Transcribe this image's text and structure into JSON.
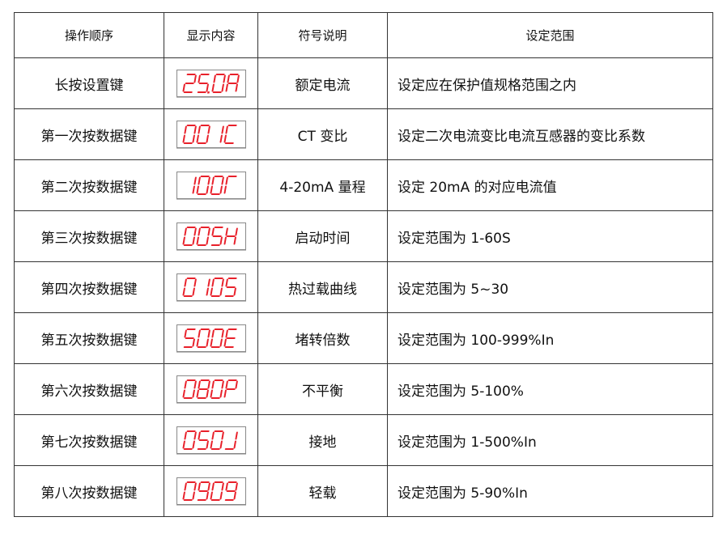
{
  "headers": [
    "操作顺序",
    "显示内容",
    "符号说明",
    "设定范围"
  ],
  "segment_color": "#e8202a",
  "rows": [
    {
      "op": "长按设置键",
      "display": "25.0A",
      "symbol": "额定电流",
      "range": "设定应在保护值规格范围之内"
    },
    {
      "op": "第一次按数据键",
      "display": "001C",
      "symbol": "CT 变比",
      "range": "设定二次电流变比电流互感器的变比系数"
    },
    {
      "op": "第二次按数据键",
      "display": "100Γ",
      "symbol": "4-20mA 量程",
      "range": "设定 20mA 的对应电流值"
    },
    {
      "op": "第三次按数据键",
      "display": "005H",
      "symbol": "启动时间",
      "range": "设定范围为 1-60S"
    },
    {
      "op": "第四次按数据键",
      "display": "0105",
      "symbol": "热过载曲线",
      "range": "设定范围为 5~30"
    },
    {
      "op": "第五次按数据键",
      "display": "500E",
      "symbol": "堵转倍数",
      "range": "设定范围为 100-999%In"
    },
    {
      "op": "第六次按数据键",
      "display": "080P",
      "symbol": "不平衡",
      "range": "设定范围为 5-100%"
    },
    {
      "op": "第七次按数据键",
      "display": "050J",
      "symbol": "接地",
      "range": "设定范围为 1-500%In"
    },
    {
      "op": "第八次按数据键",
      "display": "0909",
      "symbol": "轻载",
      "range": "设定范围为 5-90%In"
    }
  ]
}
